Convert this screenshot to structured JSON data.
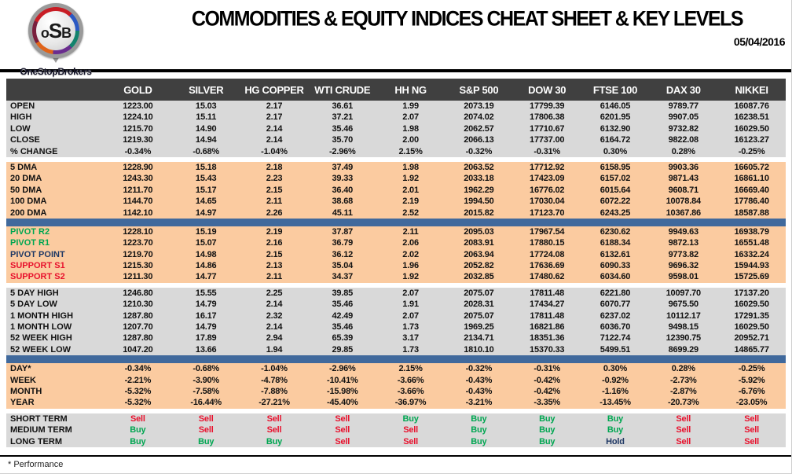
{
  "header": {
    "title": "COMMODITIES & EQUITY INDICES CHEAT SHEET & KEY LEVELS",
    "date": "05/04/2016",
    "logo": {
      "abbr": "oSB",
      "name": "OneStopBrokers"
    }
  },
  "colors": {
    "header_bar": "#404040",
    "section_gray": "#d9d9d9",
    "section_peach": "#fbcba0",
    "divider_blue": "#40699c",
    "buy_green": "#00a651",
    "sell_red": "#e8112d",
    "hold_navy": "#1f3864"
  },
  "table": {
    "columns": [
      "GOLD",
      "SILVER",
      "HG COPPER",
      "WTI CRUDE",
      "HH NG",
      "S&P 500",
      "DOW 30",
      "FTSE 100",
      "DAX 30",
      "NIKKEI"
    ],
    "sections": [
      {
        "name": "ohlc",
        "bg": "gray",
        "divider_after": false,
        "rows": [
          {
            "label": "OPEN",
            "values": [
              "1223.00",
              "15.03",
              "2.17",
              "36.61",
              "1.99",
              "2073.19",
              "17799.39",
              "6146.05",
              "9789.77",
              "16087.76"
            ]
          },
          {
            "label": "HIGH",
            "values": [
              "1224.10",
              "15.11",
              "2.17",
              "37.21",
              "2.07",
              "2074.02",
              "17806.38",
              "6201.95",
              "9907.05",
              "16238.51"
            ]
          },
          {
            "label": "LOW",
            "values": [
              "1215.70",
              "14.90",
              "2.14",
              "35.46",
              "1.98",
              "2062.57",
              "17710.67",
              "6132.90",
              "9732.82",
              "16029.50"
            ]
          },
          {
            "label": "CLOSE",
            "values": [
              "1219.30",
              "14.94",
              "2.14",
              "35.70",
              "2.00",
              "2066.13",
              "17737.00",
              "6164.72",
              "9822.08",
              "16123.27"
            ]
          },
          {
            "label": "% CHANGE",
            "values": [
              "-0.34%",
              "-0.68%",
              "-1.04%",
              "-2.96%",
              "2.15%",
              "-0.32%",
              "-0.31%",
              "0.30%",
              "0.28%",
              "-0.25%"
            ]
          }
        ]
      },
      {
        "name": "moving-averages",
        "bg": "peach",
        "divider_after": true,
        "rows": [
          {
            "label": "5 DMA",
            "values": [
              "1228.90",
              "15.18",
              "2.18",
              "37.49",
              "1.98",
              "2063.52",
              "17712.92",
              "6158.95",
              "9903.36",
              "16605.72"
            ]
          },
          {
            "label": "20 DMA",
            "values": [
              "1243.30",
              "15.43",
              "2.23",
              "39.33",
              "1.92",
              "2033.18",
              "17423.09",
              "6157.02",
              "9871.43",
              "16861.10"
            ]
          },
          {
            "label": "50 DMA",
            "values": [
              "1211.70",
              "15.17",
              "2.15",
              "36.40",
              "2.01",
              "1962.29",
              "16776.02",
              "6015.64",
              "9608.71",
              "16669.40"
            ]
          },
          {
            "label": "100 DMA",
            "values": [
              "1144.70",
              "14.65",
              "2.11",
              "38.68",
              "2.19",
              "1994.50",
              "17030.04",
              "6072.22",
              "10078.84",
              "17786.40"
            ]
          },
          {
            "label": "200 DMA",
            "values": [
              "1142.10",
              "14.97",
              "2.26",
              "45.11",
              "2.52",
              "2015.82",
              "17123.70",
              "6243.25",
              "10367.86",
              "18587.88"
            ]
          }
        ]
      },
      {
        "name": "pivots",
        "bg": "peach",
        "divider_after": false,
        "gap_after": true,
        "rows": [
          {
            "label": "PIVOT R2",
            "label_color": "green",
            "values": [
              "1228.10",
              "15.19",
              "2.19",
              "37.87",
              "2.11",
              "2095.03",
              "17967.54",
              "6230.62",
              "9949.63",
              "16938.79"
            ]
          },
          {
            "label": "PIVOT R1",
            "label_color": "green",
            "values": [
              "1223.70",
              "15.07",
              "2.16",
              "36.79",
              "2.06",
              "2083.91",
              "17880.15",
              "6188.34",
              "9872.13",
              "16551.48"
            ]
          },
          {
            "label": "PIVOT POINT",
            "label_color": "navy",
            "values": [
              "1219.70",
              "14.98",
              "2.15",
              "36.12",
              "2.02",
              "2063.94",
              "17724.08",
              "6132.61",
              "9773.82",
              "16332.24"
            ]
          },
          {
            "label": "SUPPORT S1",
            "label_color": "red",
            "values": [
              "1215.30",
              "14.86",
              "2.13",
              "35.04",
              "1.96",
              "2052.82",
              "17636.69",
              "6090.33",
              "9696.32",
              "15944.93"
            ]
          },
          {
            "label": "SUPPORT S2",
            "label_color": "red",
            "values": [
              "1211.30",
              "14.77",
              "2.11",
              "34.37",
              "1.92",
              "2032.85",
              "17480.62",
              "6034.60",
              "9598.01",
              "15725.69"
            ]
          }
        ]
      },
      {
        "name": "ranges",
        "bg": "gray",
        "divider_after": true,
        "rows": [
          {
            "label": "5 DAY HIGH",
            "values": [
              "1246.80",
              "15.55",
              "2.25",
              "39.85",
              "2.07",
              "2075.07",
              "17811.48",
              "6221.80",
              "10097.70",
              "17137.20"
            ]
          },
          {
            "label": "5 DAY LOW",
            "values": [
              "1210.30",
              "14.79",
              "2.14",
              "35.46",
              "1.91",
              "2028.31",
              "17434.27",
              "6070.77",
              "9675.50",
              "16029.50"
            ]
          },
          {
            "label": "1 MONTH HIGH",
            "values": [
              "1287.80",
              "16.17",
              "2.32",
              "42.49",
              "2.07",
              "2075.07",
              "17811.48",
              "6237.02",
              "10112.17",
              "17291.35"
            ]
          },
          {
            "label": "1 MONTH LOW",
            "values": [
              "1207.70",
              "14.79",
              "2.14",
              "35.46",
              "1.73",
              "1969.25",
              "16821.86",
              "6036.70",
              "9498.15",
              "16029.50"
            ]
          },
          {
            "label": "52 WEEK HIGH",
            "values": [
              "1287.80",
              "17.89",
              "2.94",
              "65.39",
              "3.17",
              "2134.71",
              "18351.36",
              "7122.74",
              "12390.75",
              "20952.71"
            ]
          },
          {
            "label": "52 WEEK LOW",
            "values": [
              "1047.20",
              "13.66",
              "1.94",
              "29.85",
              "1.73",
              "1810.10",
              "15370.33",
              "5499.51",
              "8699.29",
              "14865.77"
            ]
          }
        ]
      },
      {
        "name": "performance",
        "bg": "peach",
        "divider_after": false,
        "gap_after": true,
        "rows": [
          {
            "label": "DAY*",
            "values": [
              "-0.34%",
              "-0.68%",
              "-1.04%",
              "-2.96%",
              "2.15%",
              "-0.32%",
              "-0.31%",
              "0.30%",
              "0.28%",
              "-0.25%"
            ]
          },
          {
            "label": "WEEK",
            "values": [
              "-2.21%",
              "-3.90%",
              "-4.78%",
              "-10.41%",
              "-3.66%",
              "-0.43%",
              "-0.42%",
              "-0.92%",
              "-2.73%",
              "-5.92%"
            ]
          },
          {
            "label": "MONTH",
            "values": [
              "-5.32%",
              "-7.58%",
              "-7.88%",
              "-15.98%",
              "-3.66%",
              "-0.43%",
              "-0.42%",
              "-1.16%",
              "-2.87%",
              "-6.76%"
            ]
          },
          {
            "label": "YEAR",
            "values": [
              "-5.32%",
              "-16.44%",
              "-27.21%",
              "-45.40%",
              "-36.97%",
              "-3.21%",
              "-3.35%",
              "-13.45%",
              "-20.73%",
              "-23.05%"
            ]
          }
        ]
      },
      {
        "name": "signals",
        "bg": "gray",
        "divider_after": false,
        "signal": true,
        "rows": [
          {
            "label": "SHORT TERM",
            "values": [
              "Sell",
              "Sell",
              "Sell",
              "Sell",
              "Buy",
              "Buy",
              "Buy",
              "Buy",
              "Sell",
              "Sell"
            ]
          },
          {
            "label": "MEDIUM TERM",
            "values": [
              "Buy",
              "Sell",
              "Sell",
              "Sell",
              "Sell",
              "Buy",
              "Buy",
              "Buy",
              "Sell",
              "Sell"
            ]
          },
          {
            "label": "LONG TERM",
            "values": [
              "Buy",
              "Buy",
              "Buy",
              "Sell",
              "Sell",
              "Buy",
              "Buy",
              "Hold",
              "Sell",
              "Sell"
            ]
          }
        ]
      }
    ]
  },
  "footer": {
    "note": "* Performance"
  }
}
